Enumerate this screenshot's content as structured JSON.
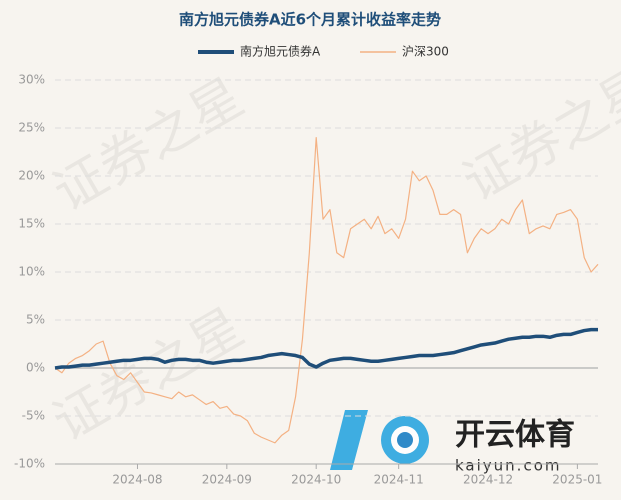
{
  "chart_data": {
    "type": "line",
    "title": "南方旭元债券A近6个月累计收益率走势",
    "annotations": [
      "证券之星",
      "开云体育",
      "kaiyun.com"
    ],
    "categories": [
      null,
      null,
      null,
      null,
      null,
      null,
      null,
      null,
      null,
      null,
      null,
      null,
      "2024-08",
      null,
      null,
      null,
      null,
      null,
      null,
      null,
      null,
      null,
      null,
      null,
      null,
      "2024-09",
      null,
      null,
      null,
      null,
      null,
      null,
      null,
      null,
      null,
      null,
      null,
      null,
      "2024-10",
      null,
      null,
      null,
      null,
      null,
      null,
      null,
      null,
      null,
      null,
      null,
      "2024-11",
      null,
      null,
      null,
      null,
      null,
      null,
      null,
      null,
      null,
      null,
      null,
      null,
      "2024-12",
      null,
      null,
      null,
      null,
      null,
      null,
      null,
      null,
      null,
      null,
      null,
      null,
      "2025-01",
      null,
      null,
      null
    ],
    "series": [
      {
        "name": "南方旭元债券A",
        "color": "#1f4e79",
        "values": [
          0,
          0.1,
          0.1,
          0.2,
          0.3,
          0.3,
          0.4,
          0.5,
          0.6,
          0.7,
          0.8,
          0.8,
          0.9,
          1.0,
          1.0,
          0.9,
          0.6,
          0.8,
          0.9,
          0.9,
          0.8,
          0.8,
          0.6,
          0.5,
          0.6,
          0.7,
          0.8,
          0.8,
          0.9,
          1.0,
          1.1,
          1.3,
          1.4,
          1.5,
          1.4,
          1.3,
          1.1,
          0.4,
          0.1,
          0.5,
          0.8,
          0.9,
          1.0,
          1.0,
          0.9,
          0.8,
          0.7,
          0.7,
          0.8,
          0.9,
          1.0,
          1.1,
          1.2,
          1.3,
          1.3,
          1.3,
          1.4,
          1.5,
          1.6,
          1.8,
          2.0,
          2.2,
          2.4,
          2.5,
          2.6,
          2.8,
          3.0,
          3.1,
          3.2,
          3.2,
          3.3,
          3.3,
          3.2,
          3.4,
          3.5,
          3.5,
          3.7,
          3.9,
          4.0,
          4.0
        ]
      },
      {
        "name": "沪深300",
        "color": "#f4b183",
        "values": [
          0,
          -0.5,
          0.5,
          1.0,
          1.3,
          1.8,
          2.5,
          2.8,
          0.5,
          -0.8,
          -1.2,
          -0.5,
          -1.5,
          -2.5,
          -2.6,
          -2.8,
          -3.0,
          -3.2,
          -2.5,
          -3.0,
          -2.8,
          -3.3,
          -3.8,
          -3.5,
          -4.2,
          -4.0,
          -4.8,
          -5.0,
          -5.5,
          -6.8,
          -7.2,
          -7.5,
          -7.8,
          -7.0,
          -6.5,
          -3.0,
          3.0,
          12.0,
          24.0,
          15.5,
          16.5,
          12.0,
          11.5,
          14.5,
          15.0,
          15.5,
          14.5,
          15.8,
          14.0,
          14.5,
          13.5,
          15.5,
          20.5,
          19.5,
          20.0,
          18.5,
          16.0,
          16.0,
          16.5,
          16.0,
          12.0,
          13.5,
          14.5,
          14.0,
          14.5,
          15.5,
          15.0,
          16.5,
          17.5,
          14.0,
          14.5,
          14.8,
          14.5,
          16.0,
          16.2,
          16.5,
          15.5,
          11.5,
          10.0,
          10.8
        ]
      }
    ],
    "ylim": [
      -10,
      30
    ],
    "yticks": [
      {
        "value": -10,
        "label": "-10%"
      },
      {
        "value": -5,
        "label": "-5%"
      },
      {
        "value": 0,
        "label": "0%"
      },
      {
        "value": 5,
        "label": "5%"
      },
      {
        "value": 10,
        "label": "10%"
      },
      {
        "value": 15,
        "label": "15%"
      },
      {
        "value": 20,
        "label": "20%"
      },
      {
        "value": 25,
        "label": "25%"
      },
      {
        "value": 30,
        "label": "30%"
      }
    ],
    "grid": true
  }
}
